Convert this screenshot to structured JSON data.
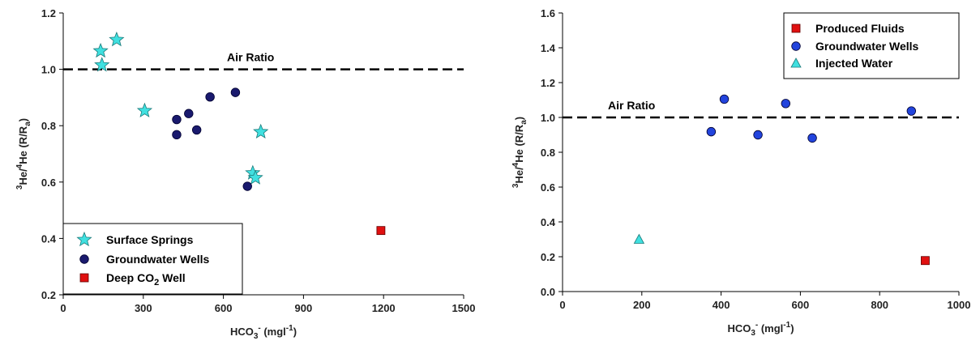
{
  "chart_data": [
    {
      "type": "scatter",
      "xlim": [
        0,
        1500
      ],
      "ylim": [
        0.2,
        1.2
      ],
      "xticks": [
        "0",
        "300",
        "600",
        "900",
        "1200",
        "1500"
      ],
      "yticks": [
        "0.2",
        "0.4",
        "0.6",
        "0.8",
        "1.0",
        "1.2"
      ],
      "xlabel": {
        "main": "HCO",
        "sub": "3",
        "sup": "-",
        "unit_a": " (mgl",
        "unit_sup": "-1",
        "unit_b": ")"
      },
      "ylabel": {
        "sup1": "3",
        "a": "He/",
        "sup2": "4",
        "b": "He (R/R",
        "sub": "a",
        "c": ")"
      },
      "reference_line": {
        "y": 1.0,
        "label": "Air Ratio",
        "style": "dashed"
      },
      "legend": {
        "position": "bottom-left",
        "entries": [
          {
            "label": "Surface Springs",
            "marker": "star",
            "color": "#40e0e0"
          },
          {
            "label": "Groundwater Wells",
            "marker": "circle",
            "color": "#1a1a6e"
          },
          {
            "label_main": "Deep CO",
            "label_sub": "2",
            "label_rest": " Well",
            "marker": "square",
            "color": "#e01010"
          }
        ]
      },
      "series": [
        {
          "name": "Surface Springs",
          "marker": "star",
          "color": "#40e0e0",
          "points": [
            [
              200,
              1.105
            ],
            [
              140,
              1.065
            ],
            [
              145,
              1.015
            ],
            [
              305,
              0.853
            ],
            [
              740,
              0.778
            ],
            [
              710,
              0.632
            ],
            [
              720,
              0.615
            ]
          ]
        },
        {
          "name": "Groundwater Wells",
          "marker": "circle",
          "color": "#1a1a6e",
          "points": [
            [
              645,
              0.918
            ],
            [
              550,
              0.902
            ],
            [
              470,
              0.843
            ],
            [
              425,
              0.822
            ],
            [
              500,
              0.785
            ],
            [
              425,
              0.768
            ],
            [
              690,
              0.585
            ]
          ]
        },
        {
          "name": "Deep CO2 Well",
          "marker": "square",
          "color": "#e01010",
          "points": [
            [
              1190,
              0.428
            ]
          ]
        }
      ]
    },
    {
      "type": "scatter",
      "xlim": [
        0,
        1000
      ],
      "ylim": [
        0,
        1.6
      ],
      "xticks": [
        "0",
        "200",
        "400",
        "600",
        "800",
        "1000"
      ],
      "yticks": [
        "0.0",
        "0.2",
        "0.4",
        "0.6",
        "0.8",
        "1.0",
        "1.2",
        "1.4",
        "1.6"
      ],
      "xlabel": {
        "main": "HCO",
        "sub": "3",
        "sup": "-",
        "unit_a": " (mgl",
        "unit_sup": "-1",
        "unit_b": ")"
      },
      "ylabel": {
        "sup1": "3",
        "a": "He/",
        "sup2": "4",
        "b": "He (R/R",
        "sub": "a",
        "c": ")"
      },
      "reference_line": {
        "y": 1.0,
        "label": "Air Ratio",
        "style": "dashed"
      },
      "legend": {
        "position": "top-right",
        "entries": [
          {
            "label": "Produced Fluids",
            "marker": "square",
            "color": "#e01010"
          },
          {
            "label": "Groundwater Wells",
            "marker": "circle",
            "color": "#2244dd"
          },
          {
            "label": "Injected Water",
            "marker": "triangle",
            "color": "#40e0e0"
          }
        ]
      },
      "series": [
        {
          "name": "Produced Fluids",
          "marker": "square",
          "color": "#e01010",
          "points": [
            [
              915,
              0.178
            ]
          ]
        },
        {
          "name": "Groundwater Wells",
          "marker": "circle",
          "color": "#2244dd",
          "points": [
            [
              408,
              1.105
            ],
            [
              563,
              1.08
            ],
            [
              880,
              1.037
            ],
            [
              375,
              0.918
            ],
            [
              493,
              0.9
            ],
            [
              630,
              0.882
            ]
          ]
        },
        {
          "name": "Injected Water",
          "marker": "triangle",
          "color": "#40e0e0",
          "points": [
            [
              193,
              0.3
            ]
          ]
        }
      ]
    }
  ]
}
